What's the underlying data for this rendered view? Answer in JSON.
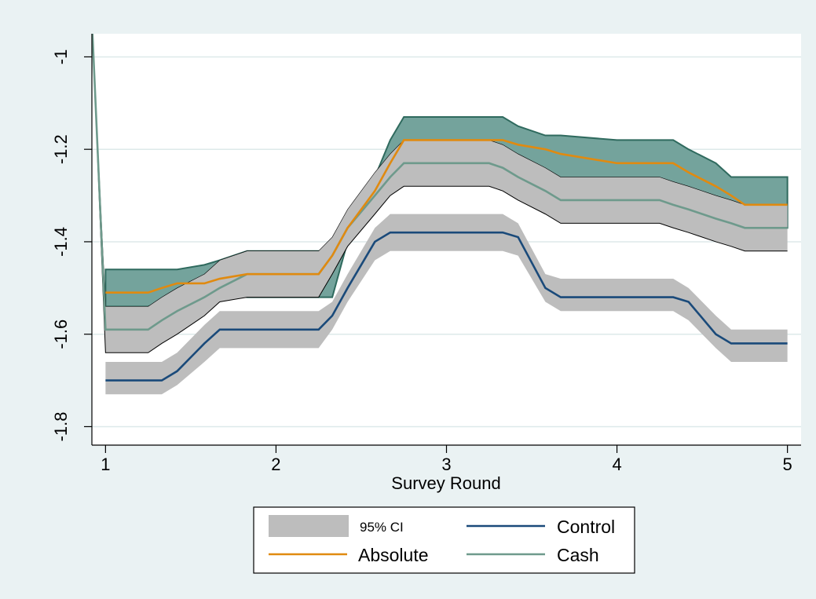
{
  "chart_data": {
    "type": "line",
    "title": "",
    "xlabel": "Survey Round",
    "ylabel": "",
    "xlim": [
      0.92,
      5.08
    ],
    "ylim": [
      -1.84,
      -0.95
    ],
    "xticks": [
      1,
      2,
      3,
      4,
      5
    ],
    "yticks": [
      -1.8,
      -1.6,
      -1.4,
      -1.2,
      -1
    ],
    "xtick_labels": [
      "1",
      "2",
      "3",
      "4",
      "5"
    ],
    "ytick_labels": [
      "-1.8",
      "-1.6",
      "-1.4",
      "-1.2",
      "-1"
    ],
    "grid": "horizontal",
    "legend_position": "bottom",
    "legend": [
      "95% CI",
      "Control",
      "Absolute",
      "Cash"
    ],
    "colors": {
      "background": "#eaf2f3",
      "plot": "#ffffff",
      "ci": "#bdbdbd",
      "overlap": "#74a39c",
      "overlap_edge": "#2f6a5e",
      "control": "#1a4a7a",
      "absolute": "#e08a10",
      "cash": "#6e9a8c",
      "grid": "#dde9ea"
    },
    "series": [
      {
        "name": "Control",
        "x": [
          1,
          1.33,
          1.42,
          1.58,
          1.67,
          2.25,
          2.33,
          2.42,
          2.58,
          2.67,
          3,
          3.33,
          3.42,
          3.58,
          3.67,
          4,
          4.33,
          4.42,
          4.58,
          4.67,
          5
        ],
        "values": [
          -1.7,
          -1.7,
          -1.68,
          -1.62,
          -1.59,
          -1.59,
          -1.56,
          -1.5,
          -1.4,
          -1.38,
          -1.38,
          -1.38,
          -1.39,
          -1.5,
          -1.52,
          -1.52,
          -1.52,
          -1.53,
          -1.6,
          -1.62,
          -1.62
        ],
        "lower": [
          -1.73,
          -1.73,
          -1.71,
          -1.66,
          -1.63,
          -1.63,
          -1.59,
          -1.53,
          -1.44,
          -1.42,
          -1.42,
          -1.42,
          -1.43,
          -1.53,
          -1.55,
          -1.55,
          -1.55,
          -1.57,
          -1.63,
          -1.66,
          -1.66
        ],
        "upper": [
          -1.66,
          -1.66,
          -1.64,
          -1.58,
          -1.55,
          -1.55,
          -1.53,
          -1.47,
          -1.37,
          -1.34,
          -1.34,
          -1.34,
          -1.36,
          -1.47,
          -1.48,
          -1.48,
          -1.48,
          -1.5,
          -1.56,
          -1.59,
          -1.59
        ]
      },
      {
        "name": "Cash",
        "x": [
          0.92,
          1,
          1.25,
          1.33,
          1.42,
          1.58,
          1.67,
          1.83,
          2.25,
          2.33,
          2.42,
          2.58,
          2.67,
          2.75,
          3,
          3.25,
          3.33,
          3.42,
          3.58,
          3.67,
          4,
          4.25,
          4.33,
          4.42,
          4.58,
          4.67,
          4.75,
          5
        ],
        "values": [
          -0.92,
          -1.59,
          -1.59,
          -1.57,
          -1.55,
          -1.52,
          -1.5,
          -1.47,
          -1.47,
          -1.43,
          -1.37,
          -1.3,
          -1.26,
          -1.23,
          -1.23,
          -1.23,
          -1.24,
          -1.26,
          -1.29,
          -1.31,
          -1.31,
          -1.31,
          -1.32,
          -1.33,
          -1.35,
          -1.36,
          -1.37,
          -1.37
        ],
        "lower": [
          -0.92,
          -1.64,
          -1.64,
          -1.62,
          -1.6,
          -1.56,
          -1.53,
          -1.52,
          -1.52,
          -1.47,
          -1.41,
          -1.34,
          -1.3,
          -1.28,
          -1.28,
          -1.28,
          -1.29,
          -1.31,
          -1.34,
          -1.36,
          -1.36,
          -1.36,
          -1.37,
          -1.38,
          -1.4,
          -1.41,
          -1.42,
          -1.42
        ],
        "upper": [
          -0.92,
          -1.54,
          -1.54,
          -1.52,
          -1.5,
          -1.47,
          -1.44,
          -1.42,
          -1.42,
          -1.39,
          -1.33,
          -1.25,
          -1.21,
          -1.18,
          -1.18,
          -1.18,
          -1.19,
          -1.21,
          -1.24,
          -1.26,
          -1.26,
          -1.26,
          -1.27,
          -1.28,
          -1.3,
          -1.31,
          -1.32,
          -1.32
        ]
      },
      {
        "name": "Absolute",
        "x": [
          1,
          1.25,
          1.33,
          1.42,
          1.58,
          1.67,
          1.83,
          2.25,
          2.33,
          2.42,
          2.58,
          2.67,
          2.75,
          3,
          3.25,
          3.33,
          3.42,
          3.58,
          3.67,
          4,
          4.25,
          4.33,
          4.42,
          4.58,
          4.67,
          4.75,
          5
        ],
        "values": [
          -1.51,
          -1.51,
          -1.5,
          -1.49,
          -1.49,
          -1.48,
          -1.47,
          -1.47,
          -1.43,
          -1.37,
          -1.29,
          -1.23,
          -1.18,
          -1.18,
          -1.18,
          -1.18,
          -1.19,
          -1.2,
          -1.21,
          -1.23,
          -1.23,
          -1.23,
          -1.25,
          -1.28,
          -1.3,
          -1.32,
          -1.32
        ],
        "lower": [
          -1.54,
          -1.54,
          -1.53,
          -1.52,
          -1.51,
          -1.51,
          -1.52,
          -1.52,
          -1.52,
          -1.4,
          -1.33,
          -1.27,
          -1.23,
          -1.23,
          -1.23,
          -1.23,
          -1.24,
          -1.26,
          -1.27,
          -1.28,
          -1.28,
          -1.28,
          -1.3,
          -1.32,
          -1.34,
          -1.36,
          -1.37
        ],
        "upper": [
          -1.46,
          -1.46,
          -1.46,
          -1.46,
          -1.45,
          -1.44,
          -1.42,
          -1.42,
          -1.42,
          -1.36,
          -1.26,
          -1.18,
          -1.13,
          -1.13,
          -1.13,
          -1.13,
          -1.15,
          -1.17,
          -1.17,
          -1.18,
          -1.18,
          -1.18,
          -1.2,
          -1.23,
          -1.26,
          -1.26,
          -1.26
        ]
      }
    ]
  },
  "legend_labels": {
    "ci": "95% CI",
    "control": "Control",
    "absolute": "Absolute",
    "cash": "Cash"
  }
}
